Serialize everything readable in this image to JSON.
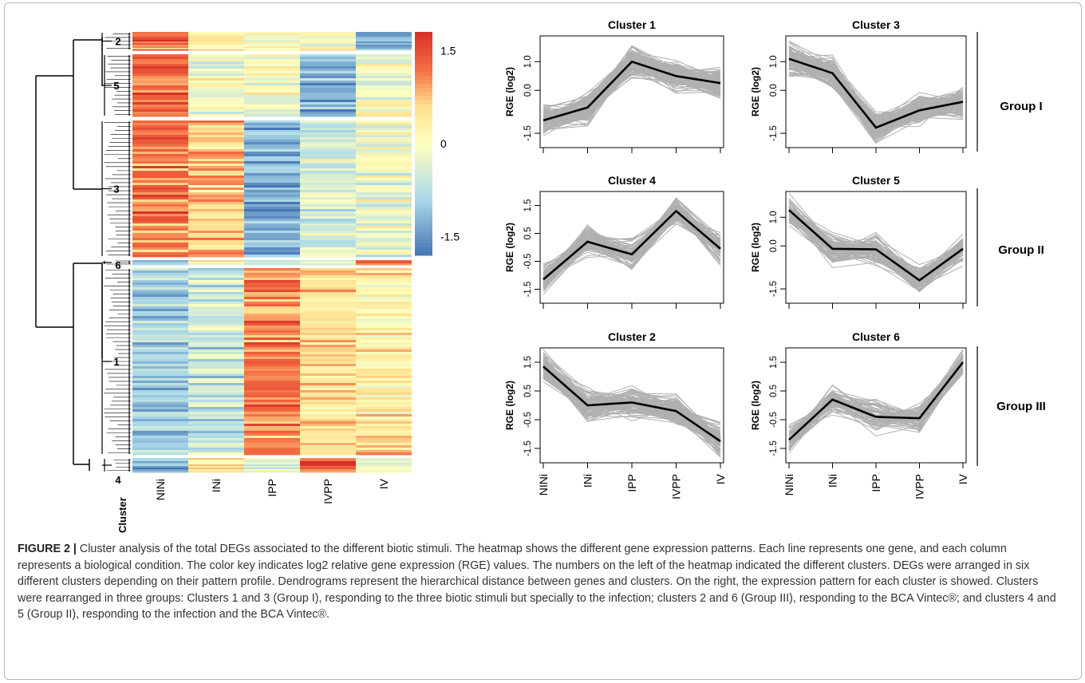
{
  "caption": {
    "label": "FIGURE 2 |",
    "text": " Cluster analysis of the total DEGs associated to the different biotic stimuli. The heatmap shows the different gene expression patterns. Each line represents one gene, and each column represents a biological condition. The color key indicates log2 relative gene expression (RGE) values. The numbers on the left of the heatmap indicated the different clusters. DEGs were arranged in six different clusters depending on their pattern profile. Dendrograms represent the hierarchical distance between genes and clusters. On the right, the expression pattern for each cluster is showed. Clusters were rearranged in three groups: Clusters 1 and 3 (Group I), responding to the three biotic stimuli but specially to the infection; clusters 2 and 6 (Group III), responding to the BCA Vintec®; and clusters 4 and 5 (Group II), responding to the infection and the BCA Vintec®."
  },
  "colors": {
    "high": "#d73027",
    "mid_high": "#f46d43",
    "mid": "#fee090",
    "center": "#ffffbf",
    "mid_low": "#abd9e9",
    "low": "#4575b4",
    "profile_gray": "#b0b0b0",
    "mean_line": "#000000"
  },
  "chart_data": [
    {
      "type": "heatmap",
      "columns": [
        "NINi",
        "INi",
        "IPP",
        "IVPP",
        "IV"
      ],
      "row_axis_label": "Cluster",
      "color_key": {
        "ticks": [
          "1.5",
          "0",
          "-1.5"
        ],
        "range": [
          -1.8,
          1.8
        ]
      },
      "clusters": [
        {
          "label": "2",
          "pattern": [
            1.4,
            0.3,
            0.1,
            0.2,
            -1.3
          ]
        },
        {
          "label": "5",
          "pattern": [
            1.3,
            0.0,
            0.0,
            -1.2,
            0.0
          ]
        },
        {
          "label": "3",
          "pattern": [
            1.2,
            0.7,
            -1.2,
            -0.4,
            -0.2
          ]
        },
        {
          "label": "6",
          "pattern": [
            -1.2,
            0.2,
            -0.4,
            -0.4,
            1.5
          ]
        },
        {
          "label": "1",
          "pattern": [
            -1.0,
            -0.5,
            1.1,
            0.5,
            0.3
          ]
        },
        {
          "label": "4",
          "pattern": [
            -1.2,
            0.3,
            -0.3,
            1.4,
            0.0
          ]
        }
      ]
    },
    {
      "type": "line",
      "title": "Cluster 1",
      "ylabel": "RGE (log2)",
      "x": [
        "NINi",
        "INi",
        "IPP",
        "IVPP",
        "IV"
      ],
      "mean": [
        -1.05,
        -0.6,
        1.0,
        0.5,
        0.25
      ],
      "yticks": [
        "1.0",
        "0.0",
        "-1.5"
      ],
      "ytick_values": [
        1.0,
        0.0,
        -1.5
      ],
      "ylim": [
        -2.0,
        1.9
      ]
    },
    {
      "type": "line",
      "title": "Cluster 3",
      "ylabel": "RGE (log2)",
      "x": [
        "NINi",
        "INi",
        "IPP",
        "IVPP",
        "IV"
      ],
      "mean": [
        1.1,
        0.6,
        -1.3,
        -0.7,
        -0.4
      ],
      "yticks": [
        "1.0",
        "0.0",
        "-1.5"
      ],
      "ytick_values": [
        1.0,
        0.0,
        -1.5
      ],
      "ylim": [
        -2.0,
        1.9
      ]
    },
    {
      "type": "line",
      "title": "Cluster 4",
      "ylabel": "RGE (log2)",
      "x": [
        "NINi",
        "INi",
        "IPP",
        "IVPP",
        "IV"
      ],
      "mean": [
        -1.15,
        0.2,
        -0.25,
        1.3,
        -0.05
      ],
      "yticks": [
        "1.5",
        "0.5",
        "-0.5",
        "-1.5"
      ],
      "ytick_values": [
        1.5,
        0.5,
        -0.5,
        -1.5
      ],
      "ylim": [
        -2.0,
        2.0
      ]
    },
    {
      "type": "line",
      "title": "Cluster 5",
      "ylabel": "RGE (log2)",
      "x": [
        "NINi",
        "INi",
        "IPP",
        "IVPP",
        "IV"
      ],
      "mean": [
        1.25,
        -0.1,
        -0.12,
        -1.2,
        -0.1
      ],
      "yticks": [
        "1.0",
        "0.0",
        "-1.5"
      ],
      "ytick_values": [
        1.0,
        0.0,
        -1.5
      ],
      "ylim": [
        -2.0,
        1.9
      ]
    },
    {
      "type": "line",
      "title": "Cluster 2",
      "ylabel": "RGE (log2)",
      "x": [
        "NINi",
        "INi",
        "IPP",
        "IVPP",
        "IV"
      ],
      "mean": [
        1.35,
        0.0,
        0.1,
        -0.2,
        -1.25
      ],
      "yticks": [
        "1.5",
        "0.5",
        "-0.5",
        "-1.5"
      ],
      "ytick_values": [
        1.5,
        0.5,
        -0.5,
        -1.5
      ],
      "ylim": [
        -2.0,
        2.0
      ]
    },
    {
      "type": "line",
      "title": "Cluster 6",
      "ylabel": "RGE (log2)",
      "x": [
        "NINi",
        "INi",
        "IPP",
        "IVPP",
        "IV"
      ],
      "mean": [
        -1.2,
        0.2,
        -0.4,
        -0.45,
        1.5
      ],
      "yticks": [
        "1.5",
        "0.5",
        "-0.5",
        "-1.5"
      ],
      "ytick_values": [
        1.5,
        0.5,
        -0.5,
        -1.5
      ],
      "ylim": [
        -2.0,
        2.0
      ]
    }
  ],
  "groups": [
    "Group I",
    "Group II",
    "Group III"
  ]
}
